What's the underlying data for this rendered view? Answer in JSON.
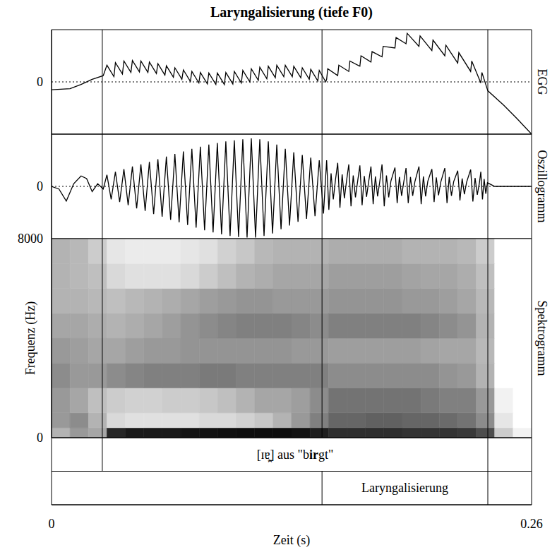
{
  "title": "Laryngalisierung (tiefe F0)",
  "x_label": "Zeit (s)",
  "xlim": [
    0,
    0.26
  ],
  "xticks": [
    0,
    0.26
  ],
  "chart_data": [
    {
      "type": "line",
      "label": "EGG",
      "color": "#000000",
      "grid": true,
      "ylim": [
        -1,
        1
      ],
      "yticks": [
        0
      ],
      "x": [
        0,
        0.01,
        0.016,
        0.022,
        0.028,
        0.03,
        0.0338,
        0.0346,
        0.0384,
        0.0392,
        0.043,
        0.0438,
        0.0476,
        0.0484,
        0.0522,
        0.053,
        0.0568,
        0.0576,
        0.0614,
        0.0622,
        0.066,
        0.0668,
        0.0706,
        0.0714,
        0.0752,
        0.076,
        0.0798,
        0.0806,
        0.0844,
        0.0852,
        0.089,
        0.0898,
        0.0936,
        0.0944,
        0.0982,
        0.099,
        0.1028,
        0.1036,
        0.1074,
        0.1082,
        0.112,
        0.1128,
        0.1166,
        0.1174,
        0.1212,
        0.122,
        0.1258,
        0.1266,
        0.1304,
        0.1312,
        0.135,
        0.1358,
        0.1396,
        0.1404,
        0.1442,
        0.145,
        0.1485,
        0.149,
        0.1496,
        0.155,
        0.1556,
        0.161,
        0.1616,
        0.167,
        0.1676,
        0.173,
        0.1736,
        0.179,
        0.1796,
        0.186,
        0.1866,
        0.192,
        0.1926,
        0.199,
        0.1996,
        0.206,
        0.2066,
        0.213,
        0.2136,
        0.22,
        0.2206,
        0.227,
        0.2276,
        0.2325,
        0.2331,
        0.2363,
        0.245,
        0.252,
        0.26
      ],
      "values": [
        -0.15,
        -0.13,
        -0.05,
        0.05,
        0.12,
        0.32,
        0.1,
        0.37,
        0.15,
        0.4,
        0.18,
        0.41,
        0.19,
        0.4,
        0.18,
        0.38,
        0.16,
        0.35,
        0.13,
        0.31,
        0.09,
        0.27,
        0.05,
        0.23,
        0.01,
        0.2,
        -0.02,
        0.18,
        -0.04,
        0.17,
        -0.05,
        0.17,
        -0.05,
        0.18,
        -0.04,
        0.2,
        -0.02,
        0.22,
        0,
        0.25,
        0.03,
        0.28,
        0.06,
        0.3,
        0.08,
        0.32,
        0.1,
        0.32,
        0.1,
        0.3,
        0.08,
        0.27,
        0.05,
        0.24,
        0.02,
        0.22,
        0,
        0.05,
        0.25,
        0.12,
        0.32,
        0.2,
        0.4,
        0.3,
        0.5,
        0.38,
        0.58,
        0.48,
        0.68,
        0.65,
        0.85,
        0.73,
        0.93,
        0.68,
        0.88,
        0.6,
        0.8,
        0.5,
        0.7,
        0.36,
        0.56,
        0.2,
        0.4,
        -0.02,
        0.18,
        -0.17,
        -0.45,
        -0.7,
        -1
      ]
    },
    {
      "type": "line",
      "label": "Oszillogramm",
      "color": "#000000",
      "grid": true,
      "ylim": [
        -1,
        1
      ],
      "yticks": [
        0
      ],
      "x": [
        0,
        0.004,
        0.008,
        0.012,
        0.016,
        0.019,
        0.022,
        0.025,
        0.028,
        0.03,
        0.0323,
        0.0346,
        0.0369,
        0.0392,
        0.0415,
        0.0438,
        0.0461,
        0.0484,
        0.0507,
        0.053,
        0.0553,
        0.0576,
        0.0599,
        0.0622,
        0.0645,
        0.0668,
        0.0691,
        0.0714,
        0.0737,
        0.076,
        0.0783,
        0.0806,
        0.0829,
        0.0852,
        0.0875,
        0.0898,
        0.0921,
        0.0944,
        0.0967,
        0.099,
        0.1013,
        0.1036,
        0.1059,
        0.1082,
        0.1105,
        0.1128,
        0.1151,
        0.1174,
        0.1197,
        0.122,
        0.1243,
        0.1266,
        0.1289,
        0.1312,
        0.1335,
        0.1358,
        0.1381,
        0.1404,
        0.1427,
        0.145,
        0.1473,
        0.149,
        0.1502,
        0.1514,
        0.1526,
        0.1538,
        0.155,
        0.1562,
        0.1574,
        0.1586,
        0.1598,
        0.161,
        0.1622,
        0.1634,
        0.1646,
        0.1658,
        0.167,
        0.1682,
        0.1694,
        0.1706,
        0.1718,
        0.173,
        0.1742,
        0.1754,
        0.1766,
        0.1778,
        0.179,
        0.1802,
        0.1814,
        0.1826,
        0.1838,
        0.186,
        0.1872,
        0.1884,
        0.1896,
        0.1908,
        0.192,
        0.1932,
        0.1944,
        0.1956,
        0.1968,
        0.199,
        0.2002,
        0.2014,
        0.2026,
        0.2038,
        0.206,
        0.2072,
        0.2084,
        0.2096,
        0.2108,
        0.213,
        0.2142,
        0.2154,
        0.2166,
        0.2178,
        0.22,
        0.2212,
        0.2224,
        0.2236,
        0.2248,
        0.227,
        0.2282,
        0.2294,
        0.2306,
        0.2318,
        0.2325,
        0.2334,
        0.2343,
        0.2352,
        0.2361,
        0.24,
        0.26
      ],
      "values": [
        0,
        -0.05,
        -0.28,
        0.05,
        0.2,
        0.15,
        -0.1,
        0.05,
        -0.05,
        0.22,
        -0.25,
        0.28,
        -0.3,
        0.33,
        -0.36,
        0.38,
        -0.42,
        0.42,
        -0.47,
        0.47,
        -0.53,
        0.52,
        -0.58,
        0.57,
        -0.64,
        0.62,
        -0.69,
        0.67,
        -0.74,
        0.72,
        -0.79,
        0.76,
        -0.84,
        0.8,
        -0.88,
        0.83,
        -0.92,
        0.86,
        -0.95,
        0.88,
        -0.97,
        0.9,
        -0.98,
        0.92,
        -0.98,
        0.9,
        -0.95,
        0.86,
        -0.9,
        0.8,
        -0.82,
        0.72,
        -0.75,
        0.65,
        -0.68,
        0.6,
        -0.62,
        0.55,
        -0.57,
        0.5,
        -0.52,
        0.5,
        -0.45,
        0.25,
        -0.25,
        0.13,
        0.45,
        -0.41,
        0.23,
        -0.23,
        0.11,
        0.42,
        -0.38,
        0.21,
        -0.21,
        0.1,
        0.4,
        -0.36,
        0.2,
        -0.2,
        0.1,
        0.38,
        -0.34,
        0.19,
        -0.19,
        0.1,
        0.42,
        -0.38,
        0.21,
        -0.21,
        0.1,
        0.36,
        -0.32,
        0.18,
        -0.18,
        0.09,
        0.35,
        -0.32,
        0.18,
        -0.18,
        0.09,
        0.38,
        -0.34,
        0.19,
        -0.19,
        0.1,
        0.33,
        -0.3,
        0.17,
        -0.17,
        0.08,
        0.35,
        -0.32,
        0.18,
        -0.18,
        0.09,
        0.3,
        -0.27,
        0.15,
        -0.15,
        0.08,
        0.32,
        -0.29,
        0.16,
        -0.16,
        0.08,
        0.28,
        -0.25,
        0.14,
        -0.14,
        0.07,
        0,
        0
      ]
    },
    {
      "type": "heatmap",
      "label": "Spektrogramm",
      "y_label": "Frequenz (Hz)",
      "ylim": [
        0,
        8000
      ],
      "yticks": [
        0,
        8000
      ],
      "time_bins": [
        0,
        0.01,
        0.02,
        0.03,
        0.04,
        0.05,
        0.06,
        0.07,
        0.08,
        0.09,
        0.1,
        0.11,
        0.12,
        0.13,
        0.14,
        0.15,
        0.16,
        0.17,
        0.18,
        0.19,
        0.2,
        0.21,
        0.22,
        0.23,
        0.24,
        0.25,
        0.26
      ],
      "freq_bins": [
        0,
        400,
        1000,
        2000,
        3000,
        4000,
        5000,
        6000,
        7000,
        8000
      ],
      "cells": [
        [
          0.3,
          0.4,
          0.35,
          0.85,
          0.9,
          0.9,
          0.9,
          0.92,
          0.93,
          0.94,
          0.95,
          0.95,
          0.95,
          0.93,
          0.88,
          0.82,
          0.82,
          0.82,
          0.82,
          0.8,
          0.8,
          0.8,
          0.78,
          0.7,
          0.2,
          0.05
        ],
        [
          0.4,
          0.45,
          0.3,
          0.15,
          0.12,
          0.12,
          0.12,
          0.12,
          0.15,
          0.15,
          0.18,
          0.22,
          0.3,
          0.4,
          0.5,
          0.6,
          0.6,
          0.62,
          0.62,
          0.6,
          0.6,
          0.58,
          0.55,
          0.45,
          0.1,
          0
        ],
        [
          0.4,
          0.35,
          0.25,
          0.2,
          0.18,
          0.18,
          0.2,
          0.2,
          0.22,
          0.25,
          0.3,
          0.35,
          0.35,
          0.38,
          0.45,
          0.55,
          0.55,
          0.55,
          0.55,
          0.55,
          0.52,
          0.5,
          0.5,
          0.4,
          0.05,
          0
        ],
        [
          0.45,
          0.4,
          0.4,
          0.45,
          0.48,
          0.5,
          0.5,
          0.5,
          0.52,
          0.52,
          0.5,
          0.5,
          0.5,
          0.5,
          0.5,
          0.45,
          0.45,
          0.45,
          0.45,
          0.45,
          0.45,
          0.42,
          0.4,
          0.3,
          0,
          0
        ],
        [
          0.4,
          0.38,
          0.35,
          0.35,
          0.38,
          0.4,
          0.4,
          0.42,
          0.42,
          0.42,
          0.42,
          0.42,
          0.42,
          0.4,
          0.4,
          0.38,
          0.38,
          0.38,
          0.38,
          0.38,
          0.36,
          0.35,
          0.35,
          0.28,
          0,
          0
        ],
        [
          0.35,
          0.35,
          0.32,
          0.3,
          0.32,
          0.35,
          0.38,
          0.42,
          0.45,
          0.48,
          0.5,
          0.5,
          0.5,
          0.48,
          0.45,
          0.5,
          0.5,
          0.5,
          0.5,
          0.5,
          0.48,
          0.45,
          0.42,
          0.3,
          0,
          0
        ],
        [
          0.3,
          0.3,
          0.28,
          0.25,
          0.28,
          0.3,
          0.32,
          0.35,
          0.38,
          0.4,
          0.42,
          0.42,
          0.4,
          0.4,
          0.4,
          0.42,
          0.42,
          0.42,
          0.42,
          0.4,
          0.4,
          0.38,
          0.35,
          0.28,
          0,
          0
        ],
        [
          0.3,
          0.28,
          0.25,
          0.15,
          0.12,
          0.12,
          0.12,
          0.15,
          0.2,
          0.25,
          0.3,
          0.32,
          0.35,
          0.35,
          0.35,
          0.38,
          0.38,
          0.38,
          0.38,
          0.36,
          0.35,
          0.35,
          0.32,
          0.25,
          0,
          0
        ],
        [
          0.3,
          0.28,
          0.2,
          0.1,
          0.08,
          0.08,
          0.08,
          0.1,
          0.12,
          0.18,
          0.22,
          0.28,
          0.3,
          0.3,
          0.3,
          0.32,
          0.32,
          0.32,
          0.32,
          0.3,
          0.3,
          0.3,
          0.28,
          0.2,
          0,
          0
        ]
      ]
    }
  ],
  "tiers": [
    {
      "intervals": [
        {
          "start": 0.0275,
          "end": 0.2363,
          "label_parts": [
            "[ɪɐ̰̯] aus \"b",
            "ir",
            "gt\""
          ]
        }
      ]
    },
    {
      "intervals": [
        {
          "start": 0.1465,
          "end": 0.2363,
          "label_parts": [
            "Laryngalisierung"
          ]
        }
      ]
    }
  ]
}
